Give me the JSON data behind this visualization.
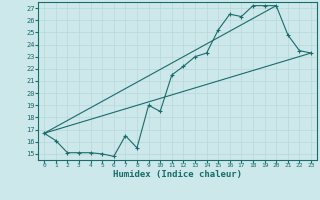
{
  "xlabel": "Humidex (Indice chaleur)",
  "bg_color": "#cce8ea",
  "line_color": "#1a6b6b",
  "grid_color": "#b8d8da",
  "xlim": [
    -0.5,
    23.5
  ],
  "ylim": [
    14.5,
    27.5
  ],
  "xticks": [
    0,
    1,
    2,
    3,
    4,
    5,
    6,
    7,
    8,
    9,
    10,
    11,
    12,
    13,
    14,
    15,
    16,
    17,
    18,
    19,
    20,
    21,
    22,
    23
  ],
  "yticks": [
    15,
    16,
    17,
    18,
    19,
    20,
    21,
    22,
    23,
    24,
    25,
    26,
    27
  ],
  "line1_x": [
    0,
    1,
    2,
    3,
    4,
    5,
    6,
    7,
    8,
    9,
    10,
    11,
    12,
    13,
    14,
    15,
    16,
    17,
    18,
    19,
    20,
    21,
    22,
    23
  ],
  "line1_y": [
    16.7,
    16.1,
    15.1,
    15.1,
    15.1,
    15.0,
    14.8,
    16.5,
    15.5,
    19.0,
    18.5,
    21.5,
    22.2,
    23.0,
    23.3,
    25.2,
    26.5,
    26.3,
    27.2,
    27.2,
    27.2,
    24.8,
    23.5,
    23.3
  ],
  "line2_x": [
    0,
    20
  ],
  "line2_y": [
    16.7,
    27.2
  ],
  "line3_x": [
    0,
    23
  ],
  "line3_y": [
    16.7,
    23.3
  ],
  "marker": "+"
}
